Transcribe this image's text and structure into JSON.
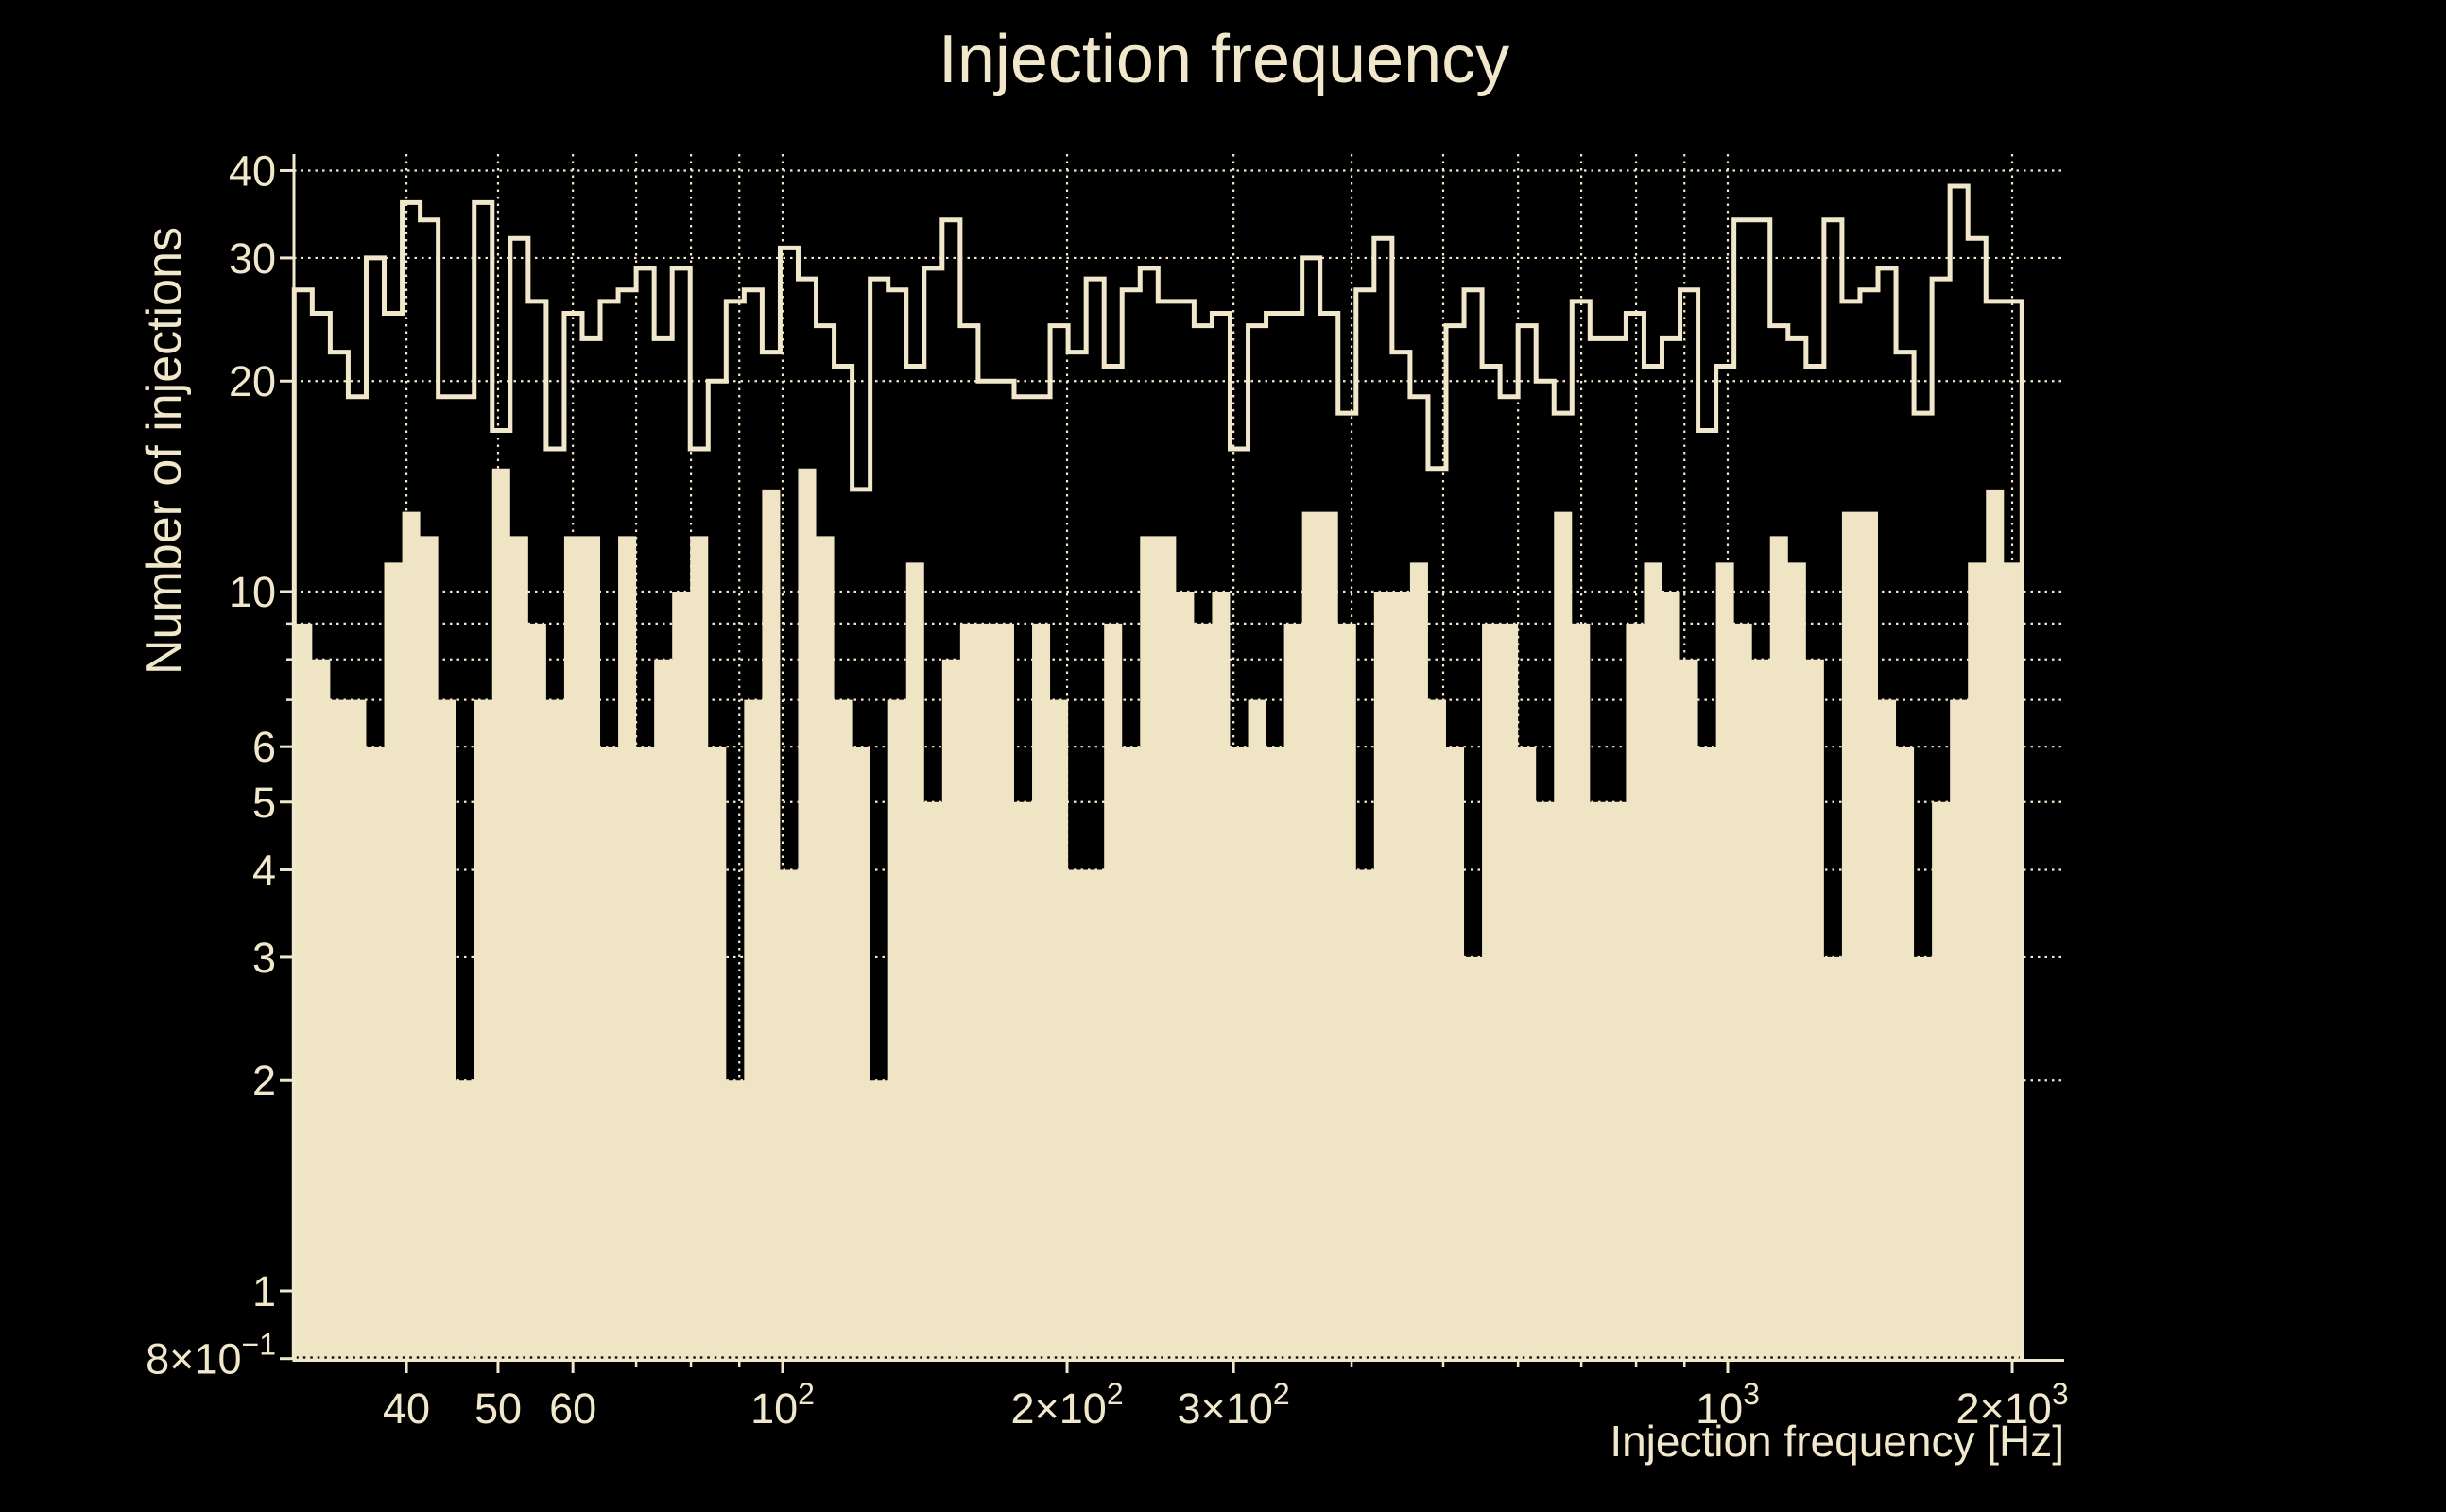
{
  "title": "Injection frequency",
  "colors": {
    "background": "#000000",
    "foreground": "#f1e8cc",
    "fill": "#efe4c3",
    "outline": "#f1e8cc"
  },
  "chart_data": {
    "type": "bar",
    "subtype": "log-log step histogram, two series",
    "title": "Injection frequency",
    "xlabel": "Injection frequency [Hz]",
    "ylabel": "Number of injections",
    "x_scale": "log",
    "y_scale": "log",
    "xlim_hz": [
      30.4,
      2270
    ],
    "ylim": [
      0.8,
      42.3
    ],
    "bins": {
      "min_hz": 30.43,
      "max_hz": 2048,
      "count": 96,
      "spacing": "log"
    },
    "series": [
      {
        "name": "injections-filled-histogram",
        "style": "filled",
        "values": [
          9,
          8,
          7,
          7,
          6,
          11,
          13,
          12,
          7,
          2,
          7,
          15,
          12,
          9,
          7,
          12,
          12,
          6,
          12,
          6,
          8,
          10,
          12,
          6,
          2,
          7,
          14,
          4,
          15,
          12,
          7,
          6,
          2,
          7,
          11,
          5,
          8,
          9,
          9,
          9,
          5,
          9,
          7,
          4,
          4,
          9,
          6,
          12,
          12,
          10,
          9,
          10,
          6,
          7,
          6,
          9,
          13,
          13,
          9,
          4,
          10,
          10,
          11,
          7,
          6,
          3,
          9,
          9,
          6,
          5,
          13,
          9,
          5,
          5,
          9,
          11,
          10,
          8,
          6,
          11,
          9,
          8,
          12,
          11,
          8,
          3,
          13,
          13,
          7,
          6,
          3,
          5,
          7,
          11,
          14,
          11
        ]
      },
      {
        "name": "injections-outline-histogram",
        "style": "step-outline",
        "values": [
          27,
          25,
          22,
          19,
          30,
          25,
          36,
          34,
          19,
          19,
          36,
          17,
          32,
          26,
          16,
          25,
          23,
          26,
          27,
          29,
          23,
          29,
          16,
          20,
          26,
          27,
          22,
          31,
          28,
          24,
          21,
          14,
          28,
          27,
          21,
          29,
          34,
          24,
          20,
          20,
          19,
          19,
          24,
          22,
          28,
          21,
          27,
          29,
          26,
          26,
          24,
          25,
          16,
          24,
          25,
          25,
          30,
          25,
          18,
          27,
          32,
          22,
          19,
          15,
          24,
          27,
          21,
          19,
          24,
          20,
          18,
          26,
          23,
          23,
          25,
          21,
          23,
          27,
          17,
          21,
          34,
          34,
          24,
          23,
          21,
          34,
          26,
          27,
          29,
          22,
          18,
          28,
          38,
          32,
          26,
          26
        ]
      }
    ],
    "x_ticks": [
      {
        "hz": 40,
        "label": "40",
        "sup": ""
      },
      {
        "hz": 50,
        "label": "50",
        "sup": ""
      },
      {
        "hz": 60,
        "label": "60",
        "sup": ""
      },
      {
        "hz": 100,
        "label": "10",
        "sup": "2"
      },
      {
        "hz": 200,
        "label": "2×10",
        "sup": "2"
      },
      {
        "hz": 300,
        "label": "3×10",
        "sup": "2"
      },
      {
        "hz": 1000,
        "label": "10",
        "sup": "3"
      },
      {
        "hz": 2000,
        "label": "2×10",
        "sup": "3"
      }
    ],
    "x_minor_ticks_hz": [
      70,
      80,
      90,
      400,
      500,
      600,
      700,
      800,
      900
    ],
    "y_ticks": [
      {
        "v": 40,
        "label": "40",
        "sup": ""
      },
      {
        "v": 30,
        "label": "30",
        "sup": ""
      },
      {
        "v": 20,
        "label": "20",
        "sup": ""
      },
      {
        "v": 10,
        "label": "10",
        "sup": ""
      },
      {
        "v": 6,
        "label": "6",
        "sup": ""
      },
      {
        "v": 5,
        "label": "5",
        "sup": ""
      },
      {
        "v": 4,
        "label": "4",
        "sup": ""
      },
      {
        "v": 3,
        "label": "3",
        "sup": ""
      },
      {
        "v": 2,
        "label": "2",
        "sup": ""
      },
      {
        "v": 1,
        "label": "1",
        "sup": ""
      },
      {
        "v": 0.8,
        "label": "8×10",
        "sup": "−1"
      }
    ],
    "y_minor_ticks": [
      9,
      8,
      7
    ],
    "grid": {
      "horizontal_v": [
        2,
        3,
        4,
        5,
        6,
        7,
        8,
        9,
        10,
        20,
        30,
        40
      ],
      "vertical_hz": [
        40,
        50,
        60,
        70,
        80,
        90,
        100,
        200,
        300,
        400,
        500,
        600,
        700,
        800,
        900,
        1000,
        2000
      ],
      "style": "dotted"
    },
    "legend": "none"
  }
}
